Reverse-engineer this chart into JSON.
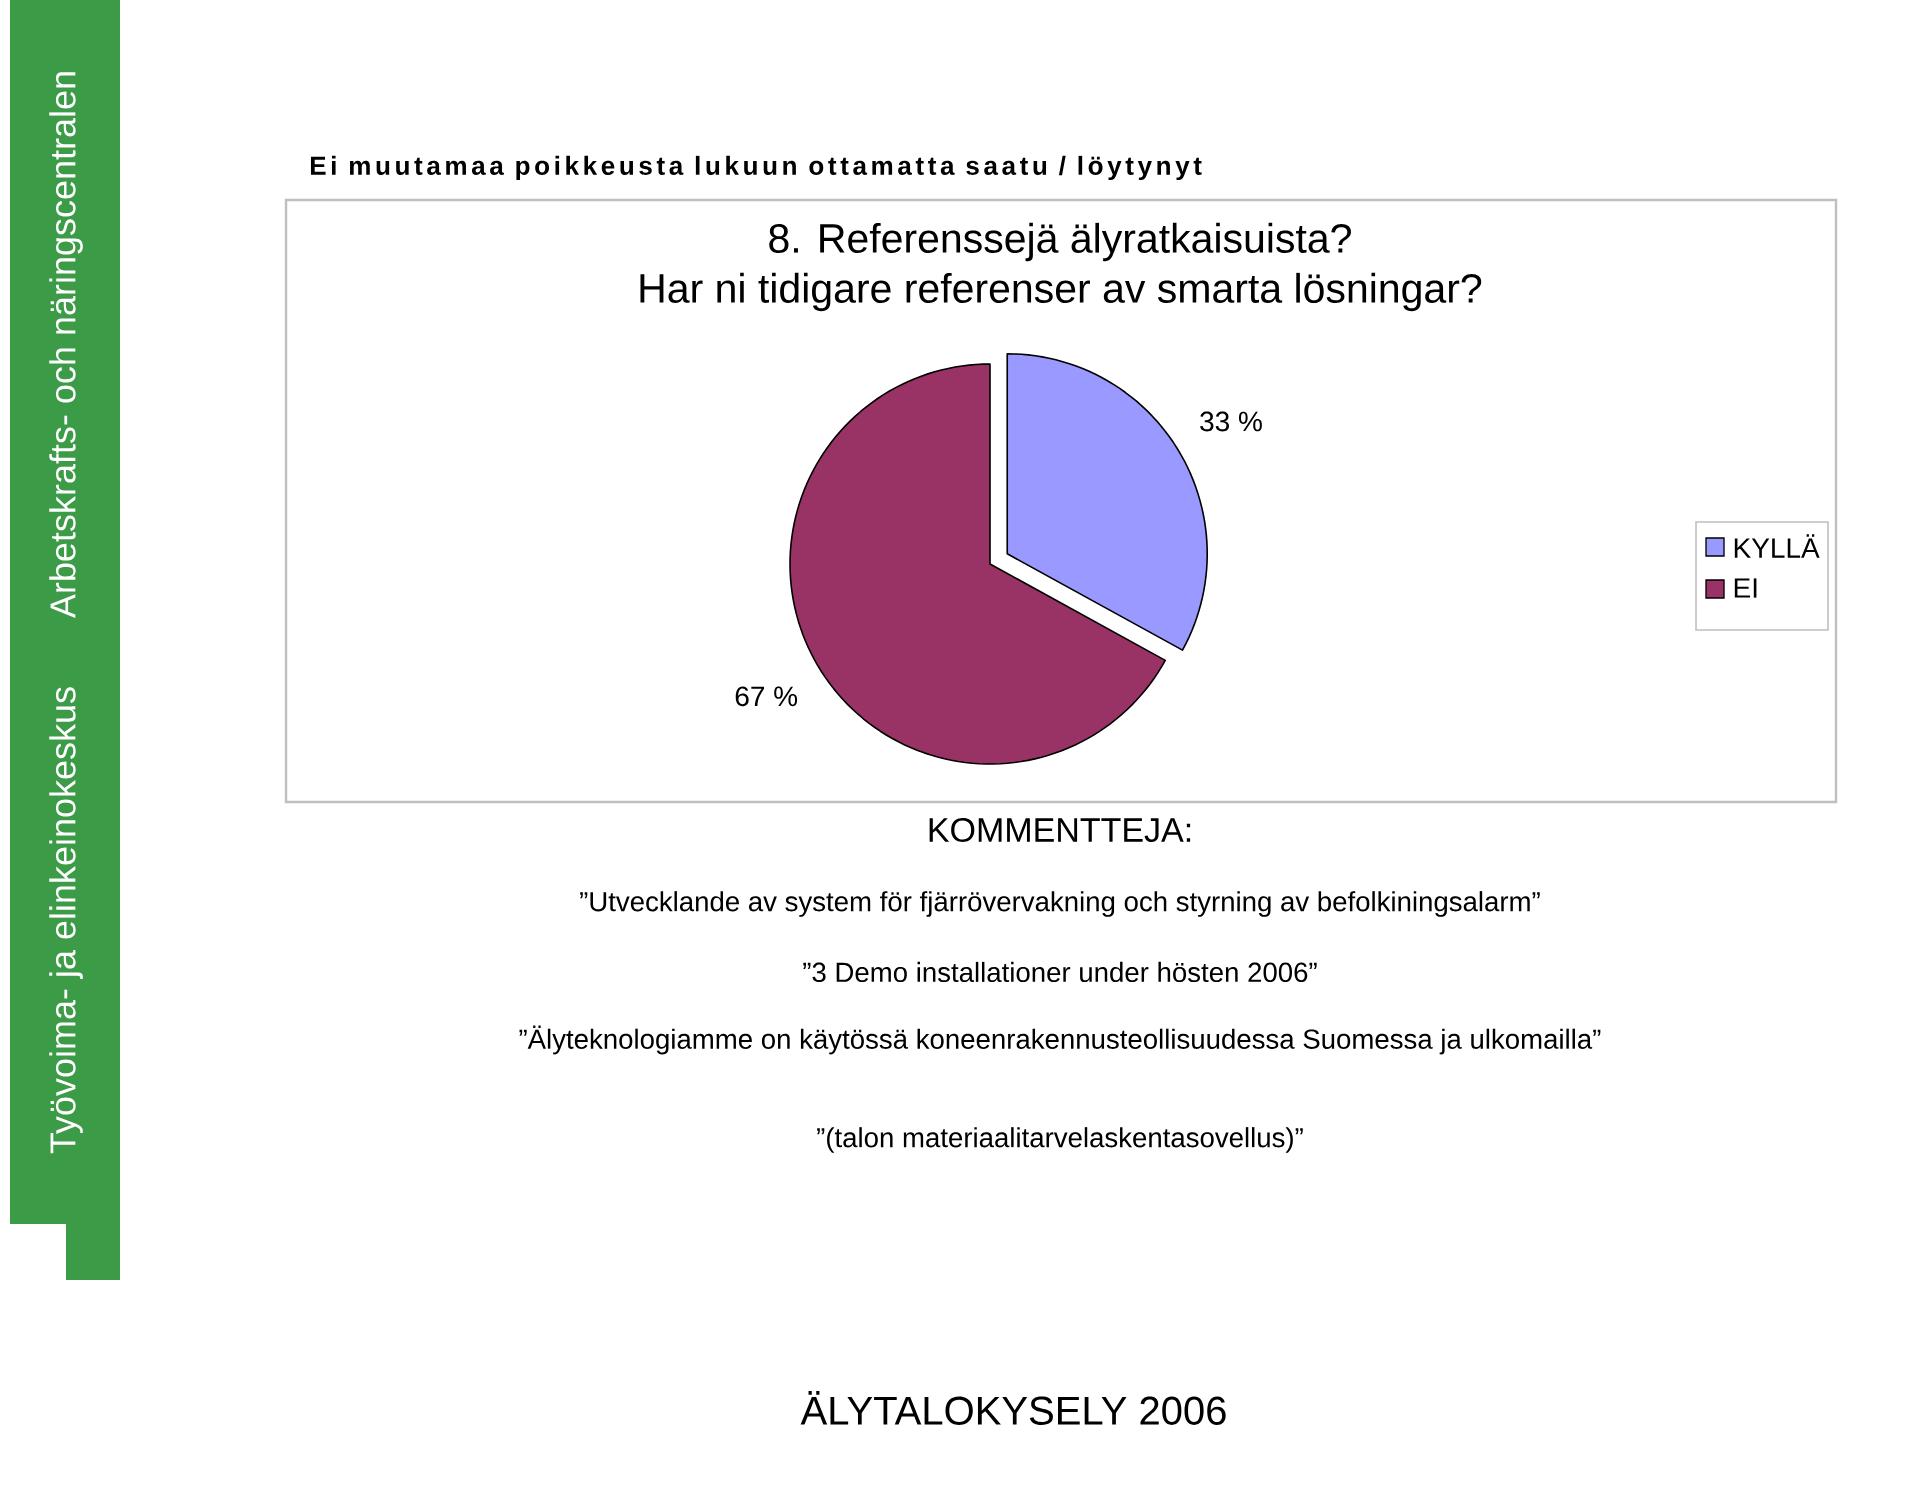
{
  "chart_data": {
    "type": "pie",
    "title": "8. Referenssejä älyratkaisuista?",
    "subtitle": "Har ni tidigare referenser av smarta lösningar?",
    "categories": [
      "KYLLÄ",
      "EI"
    ],
    "values": [
      33,
      67
    ],
    "colors": [
      "#9999ff",
      "#993366"
    ],
    "value_labels": [
      "33 %",
      "67 %"
    ],
    "legend": "right",
    "annotations": [
      "Ei muutamaa poikkeusta lukuun ottamatta saatu / löytynyt",
      "KOMMENTTEJA:",
      "”Utvecklande av system för fjärrövervakning och styrning av befolkiningsalarm”",
      "”3 Demo installationer under hösten 2006”",
      "”Älyteknologiamme on käytössä koneenrakennusteollisuudessa Suomessa ja ulkomailla”",
      "”(talon materiaalitarvelaskentasovellus)”",
      "ÄLYTALOKYSELY 2006",
      "Työvoima- ja elinkeinokeskus",
      "Arbetskrafts- och näringscentralen"
    ]
  }
}
